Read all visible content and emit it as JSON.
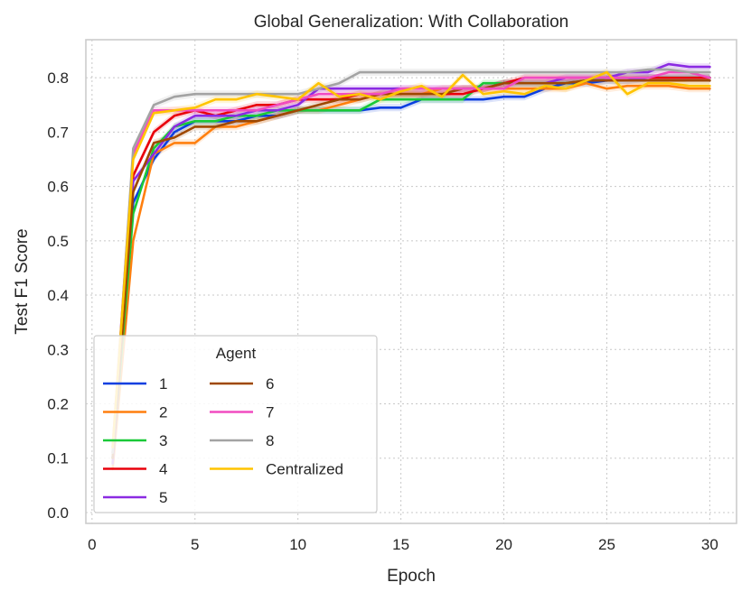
{
  "chart_data": {
    "type": "line",
    "title": "Global Generalization: With Collaboration",
    "xlabel": "Epoch",
    "ylabel": "Test F1 Score",
    "xlim": [
      -0.3,
      31.3
    ],
    "ylim": [
      -0.02,
      0.87
    ],
    "xticks": [
      0,
      5,
      10,
      15,
      20,
      25,
      30
    ],
    "yticks": [
      0.0,
      0.1,
      0.2,
      0.3,
      0.4,
      0.5,
      0.6,
      0.7,
      0.8
    ],
    "xtick_labels": [
      "0",
      "5",
      "10",
      "15",
      "20",
      "25",
      "30"
    ],
    "ytick_labels": [
      "0.0",
      "0.1",
      "0.2",
      "0.3",
      "0.4",
      "0.5",
      "0.6",
      "0.7",
      "0.8"
    ],
    "grid": true,
    "legend": {
      "title": "Agent",
      "placement": "lower-left",
      "columns": 2
    },
    "x": [
      1,
      2,
      3,
      4,
      5,
      6,
      7,
      8,
      9,
      10,
      11,
      12,
      13,
      14,
      15,
      16,
      17,
      18,
      19,
      20,
      21,
      22,
      23,
      24,
      25,
      26,
      27,
      28,
      29,
      30
    ],
    "series": [
      {
        "name": "1",
        "color": "#0b3fe0",
        "values": [
          0.1,
          0.57,
          0.65,
          0.7,
          0.72,
          0.72,
          0.72,
          0.73,
          0.73,
          0.74,
          0.74,
          0.74,
          0.74,
          0.745,
          0.745,
          0.76,
          0.76,
          0.76,
          0.76,
          0.765,
          0.765,
          0.78,
          0.79,
          0.79,
          0.795,
          0.795,
          0.8,
          0.8,
          0.8,
          0.8
        ]
      },
      {
        "name": "2",
        "color": "#ff7f0e",
        "values": [
          0.08,
          0.5,
          0.66,
          0.68,
          0.68,
          0.71,
          0.71,
          0.72,
          0.73,
          0.74,
          0.74,
          0.75,
          0.76,
          0.77,
          0.77,
          0.77,
          0.78,
          0.78,
          0.78,
          0.78,
          0.78,
          0.78,
          0.78,
          0.79,
          0.78,
          0.785,
          0.785,
          0.785,
          0.78,
          0.78
        ]
      },
      {
        "name": "3",
        "color": "#1ac938",
        "values": [
          0.1,
          0.55,
          0.67,
          0.71,
          0.72,
          0.72,
          0.73,
          0.73,
          0.74,
          0.74,
          0.74,
          0.74,
          0.74,
          0.76,
          0.76,
          0.76,
          0.76,
          0.76,
          0.79,
          0.79,
          0.79,
          0.79,
          0.79,
          0.795,
          0.8,
          0.8,
          0.8,
          0.8,
          0.8,
          0.8
        ]
      },
      {
        "name": "4",
        "color": "#e8000b",
        "values": [
          0.11,
          0.62,
          0.7,
          0.73,
          0.74,
          0.73,
          0.74,
          0.75,
          0.75,
          0.76,
          0.76,
          0.76,
          0.77,
          0.77,
          0.77,
          0.77,
          0.77,
          0.77,
          0.78,
          0.79,
          0.8,
          0.8,
          0.8,
          0.8,
          0.8,
          0.8,
          0.8,
          0.8,
          0.8,
          0.8
        ]
      },
      {
        "name": "5",
        "color": "#8b2be2",
        "values": [
          0.09,
          0.61,
          0.66,
          0.71,
          0.73,
          0.73,
          0.73,
          0.74,
          0.74,
          0.75,
          0.78,
          0.78,
          0.78,
          0.78,
          0.78,
          0.78,
          0.78,
          0.78,
          0.78,
          0.79,
          0.79,
          0.79,
          0.8,
          0.8,
          0.8,
          0.81,
          0.81,
          0.825,
          0.82,
          0.82
        ]
      },
      {
        "name": "6",
        "color": "#9f4800",
        "values": [
          0.1,
          0.59,
          0.68,
          0.69,
          0.71,
          0.71,
          0.72,
          0.72,
          0.73,
          0.74,
          0.75,
          0.76,
          0.76,
          0.77,
          0.77,
          0.77,
          0.77,
          0.78,
          0.78,
          0.79,
          0.79,
          0.79,
          0.79,
          0.795,
          0.795,
          0.795,
          0.795,
          0.795,
          0.795,
          0.795
        ]
      },
      {
        "name": "7",
        "color": "#f14cc1",
        "values": [
          0.12,
          0.66,
          0.74,
          0.74,
          0.74,
          0.74,
          0.74,
          0.74,
          0.75,
          0.76,
          0.77,
          0.77,
          0.77,
          0.77,
          0.78,
          0.78,
          0.78,
          0.78,
          0.78,
          0.78,
          0.8,
          0.8,
          0.8,
          0.8,
          0.8,
          0.8,
          0.8,
          0.81,
          0.81,
          0.8
        ]
      },
      {
        "name": "8",
        "color": "#a3a3a3",
        "values": [
          0.11,
          0.67,
          0.75,
          0.765,
          0.77,
          0.77,
          0.77,
          0.77,
          0.77,
          0.77,
          0.78,
          0.79,
          0.81,
          0.81,
          0.81,
          0.81,
          0.81,
          0.81,
          0.81,
          0.81,
          0.81,
          0.81,
          0.81,
          0.81,
          0.81,
          0.81,
          0.815,
          0.815,
          0.81,
          0.81
        ]
      },
      {
        "name": "Centralized",
        "color": "#ffc400",
        "values": [
          0.12,
          0.65,
          0.735,
          0.74,
          0.745,
          0.76,
          0.76,
          0.77,
          0.765,
          0.76,
          0.79,
          0.765,
          0.77,
          0.76,
          0.775,
          0.785,
          0.765,
          0.805,
          0.77,
          0.775,
          0.77,
          0.785,
          0.78,
          0.795,
          0.81,
          0.77,
          0.79,
          0.79,
          0.785,
          0.785
        ]
      }
    ]
  }
}
